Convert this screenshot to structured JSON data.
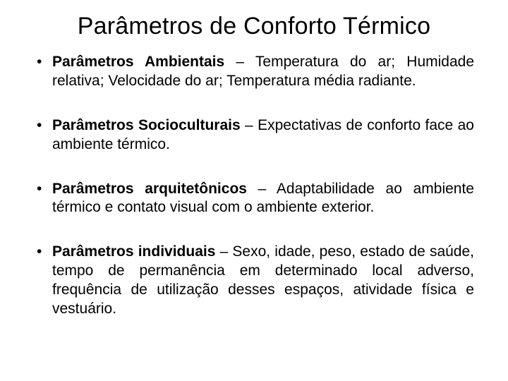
{
  "title": "Parâmetros de Conforto Térmico",
  "items": [
    {
      "label": "Parâmetros Ambientais",
      "desc": " – Temperatura do ar; Humidade relativa; Velocidade do ar; Temperatura média radiante."
    },
    {
      "label": "Parâmetros Socioculturais",
      "desc": " – Expectativas de conforto face ao ambiente térmico."
    },
    {
      "label": "Parâmetros arquitetônicos",
      "desc": " – Adaptabilidade ao ambiente térmico e contato visual com o ambiente exterior."
    },
    {
      "label": "Parâmetros individuais",
      "desc": " – Sexo, idade, peso, estado de saúde, tempo de permanência em determinado local adverso, frequência de utilização desses espaços, atividade física e vestuário."
    }
  ]
}
